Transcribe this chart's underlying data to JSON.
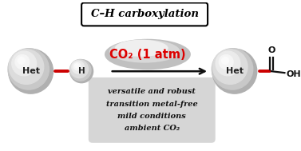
{
  "title": "C–H carboxylation",
  "co2_label": "CO₂ (1 atm)",
  "conditions": [
    "versatile and robust",
    "transition metal-free",
    "mild conditions",
    "ambient CO₂"
  ],
  "bg_color": "#ffffff",
  "bond_color": "#cc0000",
  "title_box_color": "#ffffff",
  "title_border_color": "#000000",
  "arrow_color": "#111111",
  "co2_text_color": "#dd0000",
  "text_color": "#000000",
  "bond_line_color": "#111111",
  "conditions_text_color": "#111111"
}
